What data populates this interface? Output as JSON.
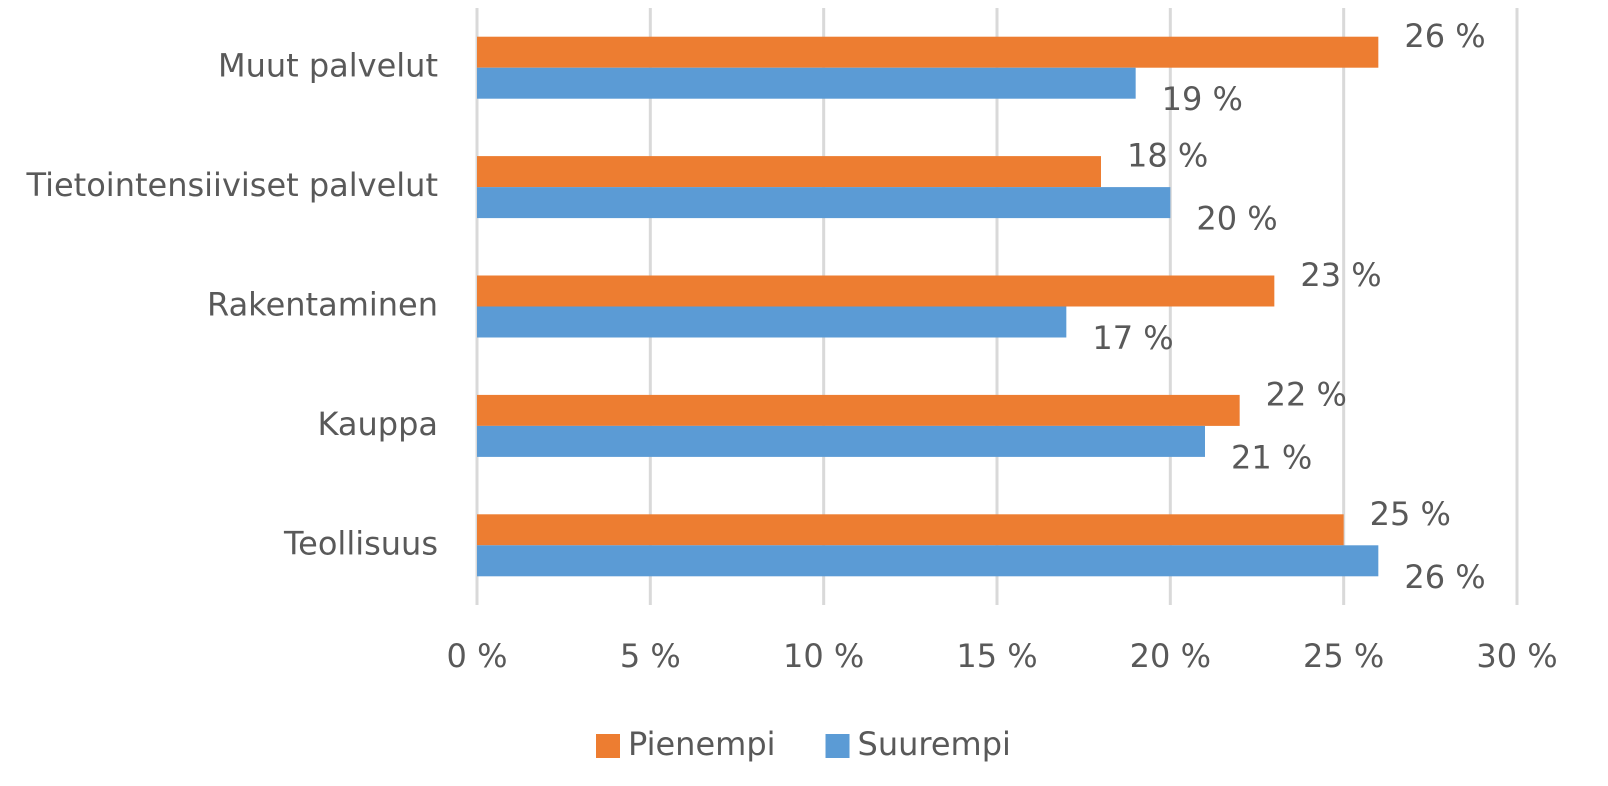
{
  "chart_data": {
    "type": "hbar",
    "categories": [
      "Muut palvelut",
      "Tietointensiiviset palvelut",
      "Rakentaminen",
      "Kauppa",
      "Teollisuus"
    ],
    "series": [
      {
        "name": "Pienempi",
        "color": "#ed7d31",
        "values": [
          26,
          18,
          23,
          22,
          25
        ],
        "value_labels": [
          "26 %",
          "18 %",
          "23 %",
          "22 %",
          "25 %"
        ]
      },
      {
        "name": "Suurempi",
        "color": "#5b9bd5",
        "values": [
          19,
          20,
          17,
          21,
          26
        ],
        "value_labels": [
          "19 %",
          "20 %",
          "17 %",
          "21 %",
          "26 %"
        ]
      }
    ],
    "xlim": [
      0,
      30
    ],
    "xticks": [
      {
        "value": 0,
        "label": "0 %"
      },
      {
        "value": 5,
        "label": "5 %"
      },
      {
        "value": 10,
        "label": "10 %"
      },
      {
        "value": 15,
        "label": "15 %"
      },
      {
        "value": 20,
        "label": "20 %"
      },
      {
        "value": 25,
        "label": "25 %"
      },
      {
        "value": 30,
        "label": "30 %"
      }
    ],
    "grid": true,
    "legend": "bottom"
  }
}
